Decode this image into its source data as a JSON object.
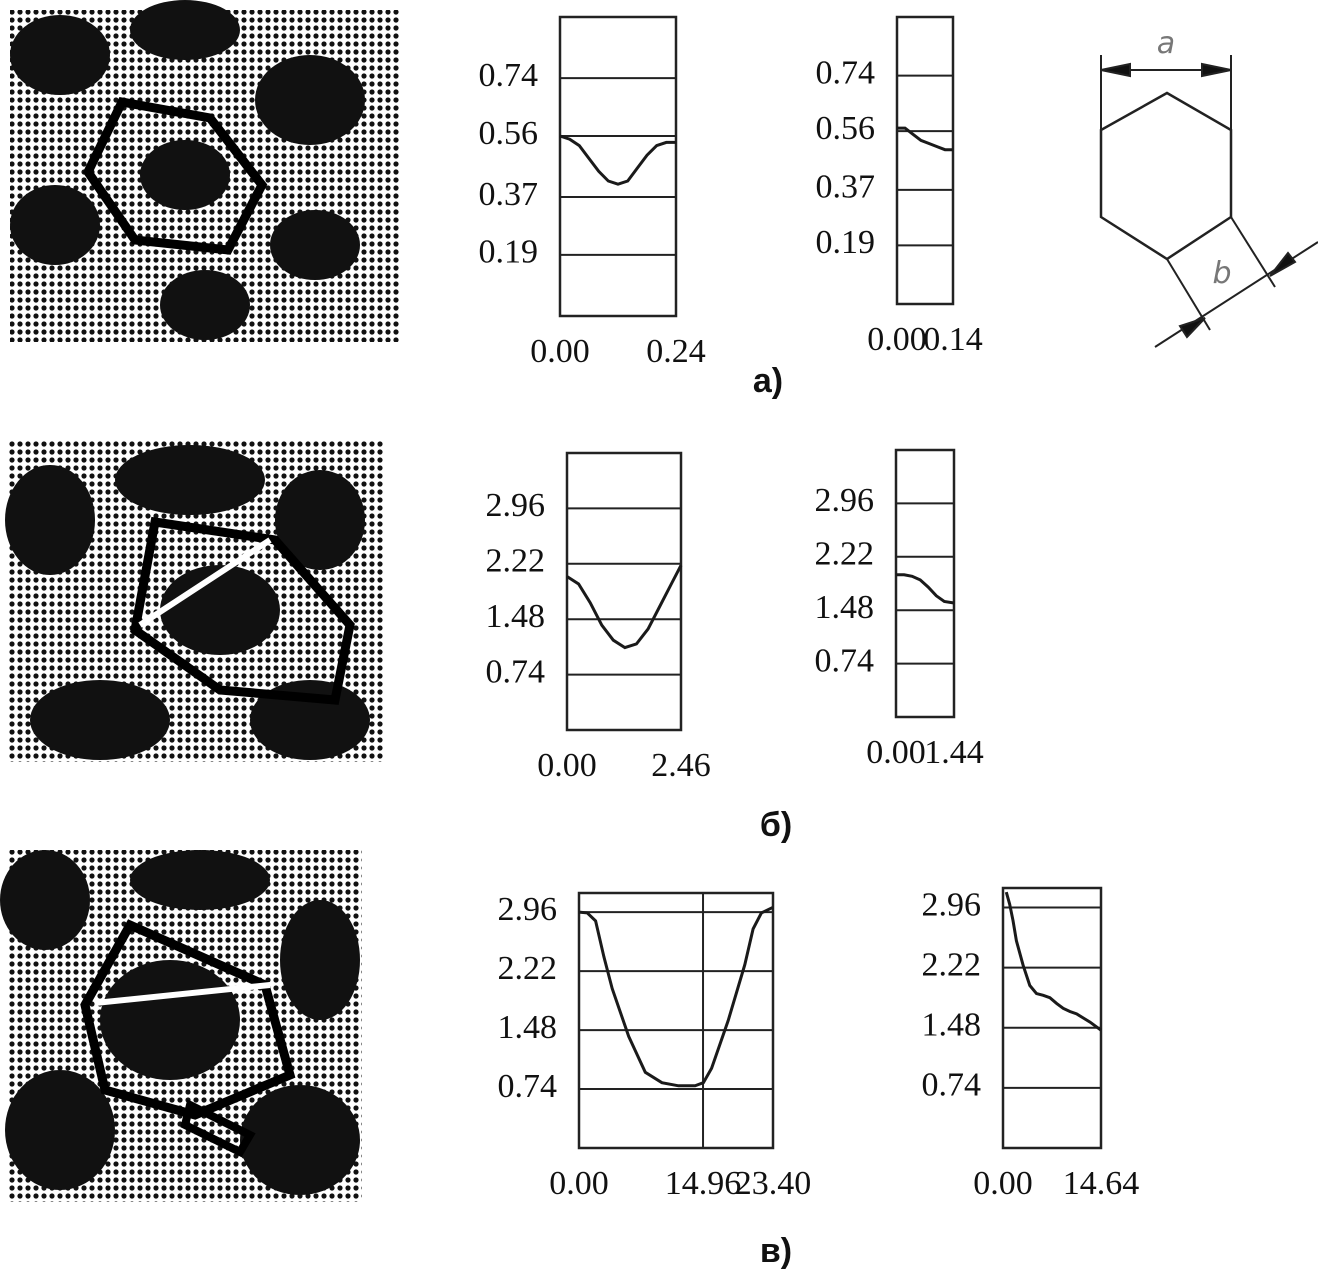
{
  "chart_data": [
    {
      "type": "line",
      "x": [
        0,
        0.02,
        0.04,
        0.06,
        0.08,
        0.1,
        0.12,
        0.14,
        0.16,
        0.18,
        0.2,
        0.22,
        0.24
      ],
      "series": [
        {
          "color": "#1a1a1a",
          "values": [
            0.56,
            0.55,
            0.53,
            0.49,
            0.45,
            0.42,
            0.41,
            0.42,
            0.46,
            0.5,
            0.53,
            0.54,
            0.54
          ]
        }
      ],
      "xlim": [
        0,
        0.24
      ],
      "xticks": [
        {
          "value": 0,
          "label": "0.00"
        },
        0.24
      ],
      "ylim": [
        0,
        0.93
      ],
      "yticks": [
        0.19,
        0.37,
        0.56,
        0.74
      ],
      "grid": true
    },
    {
      "type": "line",
      "x": [
        0,
        0.02,
        0.04,
        0.06,
        0.08,
        0.1,
        0.12,
        0.14
      ],
      "series": [
        {
          "color": "#1a1a1a",
          "values": [
            0.57,
            0.57,
            0.55,
            0.53,
            0.52,
            0.51,
            0.5,
            0.5
          ]
        }
      ],
      "xlim": [
        0,
        0.14
      ],
      "xticks": [
        {
          "value": 0,
          "label": "0.00"
        },
        0.14
      ],
      "ylim": [
        0,
        0.93
      ],
      "yticks": [
        0.19,
        0.37,
        0.56,
        0.74
      ],
      "grid": true
    },
    {
      "type": "line",
      "x": [
        0,
        0.25,
        0.5,
        0.75,
        1.0,
        1.25,
        1.5,
        1.75,
        2.0,
        2.25,
        2.46
      ],
      "series": [
        {
          "color": "#1a1a1a",
          "values": [
            2.05,
            1.95,
            1.7,
            1.4,
            1.2,
            1.1,
            1.15,
            1.35,
            1.65,
            1.95,
            2.2
          ]
        }
      ],
      "xlim": [
        0,
        2.46
      ],
      "xticks": [
        {
          "value": 0,
          "label": "0.00"
        },
        2.46
      ],
      "ylim": [
        0,
        3.7
      ],
      "yticks": [
        0.74,
        1.48,
        2.22,
        2.96
      ],
      "grid": true
    },
    {
      "type": "line",
      "x": [
        0,
        0.2,
        0.4,
        0.6,
        0.8,
        1.0,
        1.2,
        1.44
      ],
      "series": [
        {
          "color": "#1a1a1a",
          "values": [
            1.97,
            1.97,
            1.95,
            1.9,
            1.8,
            1.68,
            1.6,
            1.58
          ]
        }
      ],
      "xlim": [
        0,
        1.44
      ],
      "xticks": [
        {
          "value": 0,
          "label": "0.00"
        },
        1.44
      ],
      "ylim": [
        0,
        3.7
      ],
      "yticks": [
        0.74,
        1.48,
        2.22,
        2.96
      ],
      "grid": true
    },
    {
      "type": "line",
      "x": [
        0,
        1,
        2,
        3,
        4,
        6,
        8,
        10,
        12,
        14,
        15,
        16,
        18,
        20,
        21,
        22,
        23.4
      ],
      "series": [
        {
          "color": "#1a1a1a",
          "values": [
            2.96,
            2.95,
            2.85,
            2.4,
            2.0,
            1.4,
            0.95,
            0.82,
            0.78,
            0.78,
            0.82,
            1.0,
            1.6,
            2.3,
            2.75,
            2.95,
            3.02
          ]
        }
      ],
      "xlim": [
        0,
        23.4
      ],
      "xticks": [
        {
          "value": 0,
          "label": "0.00"
        },
        14.96,
        {
          "value": 23.4,
          "label": "23.40"
        }
      ],
      "ylim": [
        0,
        3.2
      ],
      "yticks": [
        0.74,
        1.48,
        2.22,
        2.96
      ],
      "grid": true
    },
    {
      "type": "line",
      "x": [
        0.5,
        1,
        1.5,
        2,
        3,
        4,
        5,
        6,
        7,
        8,
        9,
        10,
        11,
        12,
        13,
        14.64
      ],
      "series": [
        {
          "color": "#1a1a1a",
          "values": [
            3.15,
            3.0,
            2.8,
            2.55,
            2.25,
            2.0,
            1.9,
            1.88,
            1.85,
            1.78,
            1.72,
            1.68,
            1.65,
            1.6,
            1.55,
            1.45
          ]
        }
      ],
      "xlim": [
        0,
        14.64
      ],
      "xticks": [
        {
          "value": 0,
          "label": "0.00"
        },
        14.64
      ],
      "ylim": [
        0,
        3.2
      ],
      "yticks": [
        0.74,
        1.48,
        2.22,
        2.96
      ],
      "grid": true
    }
  ],
  "panel_labels": [
    "а)",
    "б)",
    "в)"
  ],
  "diagram": {
    "a": "a",
    "b": "b"
  }
}
